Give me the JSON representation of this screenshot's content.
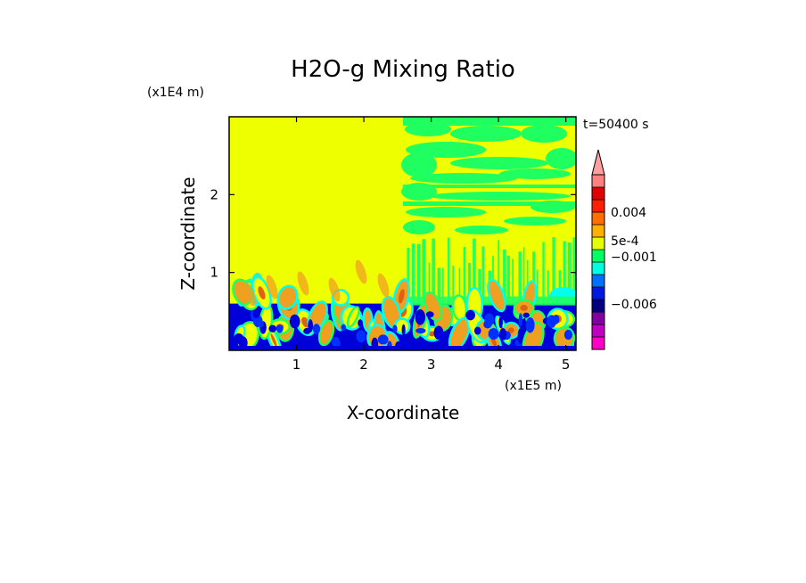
{
  "chart_data": {
    "type": "heatmap",
    "title": "H2O-g Mixing Ratio",
    "xlabel": "X-coordinate",
    "ylabel": "Z-coordinate",
    "x_unit": "(x1E5 m)",
    "y_unit": "(x1E4 m)",
    "time_label": "t=50400 s",
    "xlim": [
      0,
      5.15
    ],
    "ylim": [
      0,
      3.0
    ],
    "x_ticks": [
      1,
      2,
      3,
      4,
      5
    ],
    "y_ticks": [
      1,
      2
    ],
    "colorbar": {
      "labels": [
        {
          "text": "0.004",
          "level": 0.004
        },
        {
          "text": "5e-4",
          "level": 0.0005
        },
        {
          "text": "−0.001",
          "level": -0.001
        },
        {
          "text": "−0.006",
          "level": -0.006
        }
      ],
      "colors": [
        "#ff00c8",
        "#c000c0",
        "#8000a0",
        "#000080",
        "#0018e0",
        "#0070ff",
        "#00ffe0",
        "#00ff60",
        "#e6ff00",
        "#ffb000",
        "#ff7000",
        "#ff2000",
        "#e00000",
        "#ff8080"
      ],
      "arrow_color": "#ff9f9f"
    },
    "field_colors": {
      "yellow": "#eeff00",
      "green": "#20ff60",
      "cyan": "#00ffee",
      "blue": "#0000d8",
      "royal": "#0030ff",
      "orange": "#f0a020",
      "red": "#e06010"
    }
  }
}
